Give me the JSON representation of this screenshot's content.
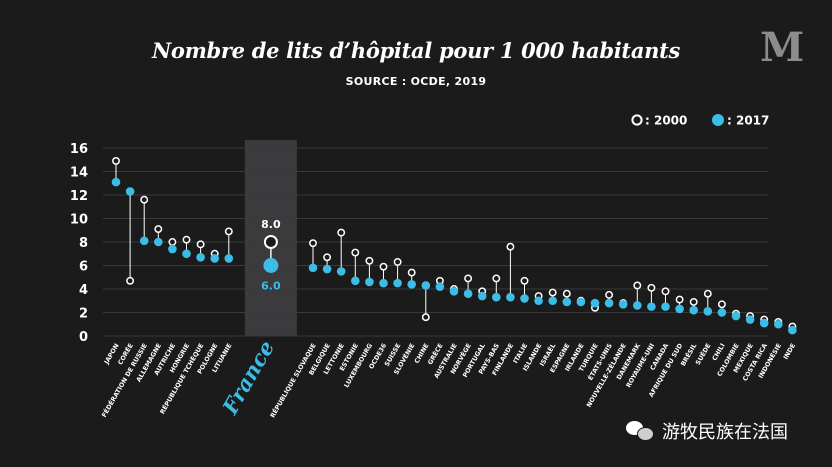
{
  "title": "Nombre de lits d’hôpital pour 1 000 habitants",
  "source": "SOURCE : OCDE, 2019",
  "logo": "M",
  "watermark": "游牧民族在法国",
  "colors": {
    "background": "#1b1b1c",
    "y2017": "#3bbde6",
    "y2000": "#ffffff",
    "grid": "#3a3a3c",
    "highlight": "#3b3b3d",
    "france_label": "#3bbde6"
  },
  "chart_data": {
    "type": "dumbbell",
    "title": "Nombre de lits d’hôpital pour 1 000 habitants",
    "subtitle": "SOURCE : OCDE, 2019",
    "xlabel": "",
    "ylabel": "",
    "ylim": [
      0,
      16
    ],
    "yticks": [
      0,
      2,
      4,
      6,
      8,
      10,
      12,
      14,
      16
    ],
    "grid": true,
    "legend": [
      {
        "marker": "hollow-circle",
        "label": ": 2000"
      },
      {
        "marker": "filled-circle",
        "label": ": 2017"
      }
    ],
    "legend_position": "top-right",
    "highlight": {
      "category": "France",
      "label": "France",
      "value_2000_label": "8.0",
      "value_2017_label": "6.0"
    },
    "categories": [
      "JAPON",
      "CORÉE",
      "FÉDÉRATION DE RUSSIE",
      "ALLEMAGNE",
      "AUTRICHE",
      "HONGRIE",
      "RÉPUBLIQUE TCHÈQUE",
      "POLOGNE",
      "LITUANIE",
      "France",
      "RÉPUBLIQUE SLOVAQUE",
      "BELGIQUE",
      "LETTONIE",
      "ESTONIE",
      "LUXEMBOURG",
      "OCDE36",
      "SUISSE",
      "SLOVÉNIE",
      "CHINE",
      "GRÈCE",
      "AUSTRALIE",
      "NORVÈGE",
      "PORTUGAL",
      "PAYS-BAS",
      "FINLANDE",
      "ITALIE",
      "ISLANDE",
      "ISRAËL",
      "ESPAGNE",
      "IRLANDE",
      "TURQUIE",
      "ÉTATS-UNIS",
      "NOUVELLE-ZÉLANDE",
      "DANEMARK",
      "ROYAUME-UNI",
      "CANADA",
      "AFRIQUE DU SUD",
      "BRÉSIL",
      "SUÈDE",
      "CHILI",
      "COLOMBIE",
      "MEXIQUE",
      "COSTA RICA",
      "INDONÉSIE",
      "INDE"
    ],
    "series": [
      {
        "name": "2000",
        "values": [
          14.9,
          4.7,
          11.6,
          9.1,
          8.0,
          8.2,
          7.8,
          7.0,
          8.9,
          8.0,
          7.9,
          6.7,
          8.8,
          7.1,
          6.4,
          5.9,
          6.3,
          5.4,
          1.6,
          4.7,
          4.0,
          4.9,
          3.8,
          4.9,
          7.6,
          4.7,
          3.4,
          3.7,
          3.6,
          3.0,
          2.4,
          3.5,
          2.8,
          4.3,
          4.1,
          3.8,
          3.1,
          2.9,
          3.6,
          2.7,
          1.9,
          1.7,
          1.4,
          1.2,
          0.8
        ]
      },
      {
        "name": "2017",
        "values": [
          13.1,
          12.3,
          8.1,
          8.0,
          7.4,
          7.0,
          6.7,
          6.6,
          6.6,
          6.0,
          5.8,
          5.7,
          5.5,
          4.7,
          4.6,
          4.5,
          4.5,
          4.4,
          4.3,
          4.2,
          3.8,
          3.6,
          3.4,
          3.3,
          3.3,
          3.2,
          3.0,
          3.0,
          2.9,
          2.9,
          2.8,
          2.8,
          2.7,
          2.6,
          2.5,
          2.5,
          2.3,
          2.2,
          2.1,
          2.0,
          1.7,
          1.4,
          1.1,
          1.0,
          0.5
        ]
      }
    ]
  }
}
